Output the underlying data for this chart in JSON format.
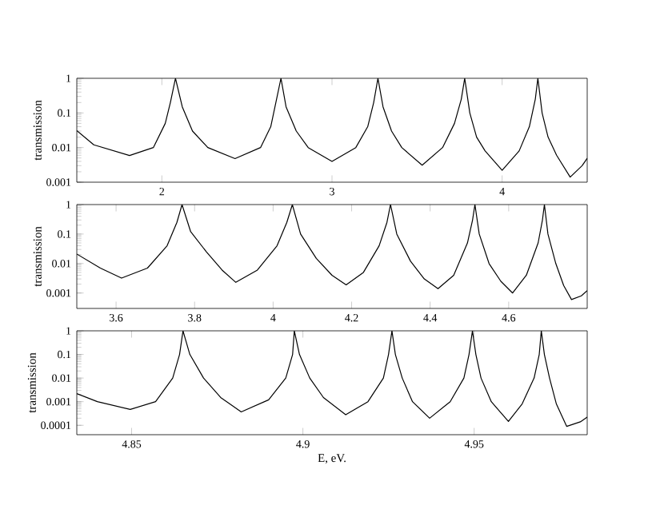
{
  "chart_data": [
    {
      "type": "line",
      "ylabel": "transmission",
      "log": "y",
      "color": "#000000",
      "xlim": [
        1.5,
        4.5
      ],
      "ylim": [
        0.001,
        1
      ],
      "xticks": [
        2,
        3,
        4
      ],
      "yticks": [
        0.001,
        0.01,
        0.1,
        1
      ],
      "x": [
        1.5,
        1.6,
        1.81,
        1.95,
        2.02,
        2.05,
        2.08,
        2.12,
        2.18,
        2.27,
        2.43,
        2.58,
        2.64,
        2.67,
        2.7,
        2.73,
        2.79,
        2.86,
        3.0,
        3.14,
        3.21,
        3.245,
        3.27,
        3.3,
        3.35,
        3.41,
        3.53,
        3.65,
        3.72,
        3.76,
        3.78,
        3.81,
        3.85,
        3.9,
        4.0,
        4.1,
        4.16,
        4.195,
        4.21,
        4.235,
        4.27,
        4.32,
        4.4,
        4.47,
        4.5
      ],
      "values": [
        0.031,
        0.012,
        0.0059,
        0.01,
        0.05,
        0.2,
        1,
        0.15,
        0.03,
        0.01,
        0.0048,
        0.01,
        0.04,
        0.2,
        1,
        0.15,
        0.03,
        0.01,
        0.004,
        0.01,
        0.04,
        0.2,
        1,
        0.15,
        0.03,
        0.01,
        0.0031,
        0.01,
        0.05,
        0.25,
        1,
        0.1,
        0.02,
        0.008,
        0.0022,
        0.008,
        0.04,
        0.25,
        1,
        0.1,
        0.02,
        0.006,
        0.0014,
        0.003,
        0.0049
      ]
    },
    {
      "type": "line",
      "ylabel": "transmission",
      "log": "y",
      "color": "#000000",
      "xlim": [
        3.5,
        4.8
      ],
      "ylim": [
        0.0003,
        1
      ],
      "xticks": [
        3.6,
        3.8,
        4,
        4.2,
        4.4,
        4.6
      ],
      "yticks": [
        0.001,
        0.01,
        0.1,
        1
      ],
      "x": [
        3.5,
        3.56,
        3.614,
        3.68,
        3.73,
        3.755,
        3.768,
        3.79,
        3.83,
        3.87,
        3.905,
        3.96,
        4.01,
        4.035,
        4.049,
        4.07,
        4.11,
        4.15,
        4.186,
        4.23,
        4.27,
        4.29,
        4.299,
        4.315,
        4.35,
        4.385,
        4.42,
        4.46,
        4.495,
        4.508,
        4.514,
        4.525,
        4.55,
        4.58,
        4.61,
        4.645,
        4.675,
        4.686,
        4.691,
        4.7,
        4.72,
        4.74,
        4.76,
        4.785,
        4.8
      ],
      "values": [
        0.021,
        0.007,
        0.0032,
        0.007,
        0.04,
        0.25,
        1,
        0.12,
        0.025,
        0.006,
        0.0023,
        0.006,
        0.04,
        0.25,
        1,
        0.1,
        0.015,
        0.004,
        0.0019,
        0.005,
        0.04,
        0.25,
        1,
        0.1,
        0.012,
        0.003,
        0.0014,
        0.004,
        0.05,
        0.3,
        1,
        0.1,
        0.01,
        0.0025,
        0.001,
        0.004,
        0.05,
        0.3,
        1,
        0.1,
        0.01,
        0.0018,
        0.0006,
        0.0008,
        0.0012
      ]
    },
    {
      "type": "line",
      "ylabel": "transmission",
      "xlabel": "E, eV.",
      "log": "y",
      "color": "#000000",
      "xlim": [
        4.834,
        4.983
      ],
      "ylim": [
        4e-05,
        1
      ],
      "xticks": [
        4.85,
        4.9,
        4.95
      ],
      "yticks": [
        0.0001,
        0.001,
        0.01,
        0.1,
        1
      ],
      "x": [
        4.834,
        4.84,
        4.8496,
        4.857,
        4.862,
        4.864,
        4.865,
        4.867,
        4.871,
        4.876,
        4.882,
        4.89,
        4.895,
        4.897,
        4.8975,
        4.899,
        4.902,
        4.906,
        4.9125,
        4.919,
        4.9235,
        4.925,
        4.926,
        4.927,
        4.929,
        4.932,
        4.937,
        4.943,
        4.947,
        4.9485,
        4.9495,
        4.9505,
        4.952,
        4.955,
        4.96,
        4.964,
        4.9675,
        4.969,
        4.9696,
        4.9705,
        4.972,
        4.974,
        4.977,
        4.981,
        4.983
      ],
      "values": [
        0.0022,
        0.001,
        0.00047,
        0.001,
        0.01,
        0.1,
        1,
        0.1,
        0.01,
        0.0015,
        0.00037,
        0.0012,
        0.01,
        0.1,
        1,
        0.1,
        0.01,
        0.0015,
        0.00028,
        0.001,
        0.01,
        0.1,
        1,
        0.1,
        0.01,
        0.001,
        0.0002,
        0.001,
        0.01,
        0.1,
        1,
        0.1,
        0.01,
        0.001,
        0.000145,
        0.0008,
        0.01,
        0.1,
        1,
        0.1,
        0.01,
        0.0008,
        9e-05,
        0.00014,
        0.00022
      ]
    }
  ]
}
